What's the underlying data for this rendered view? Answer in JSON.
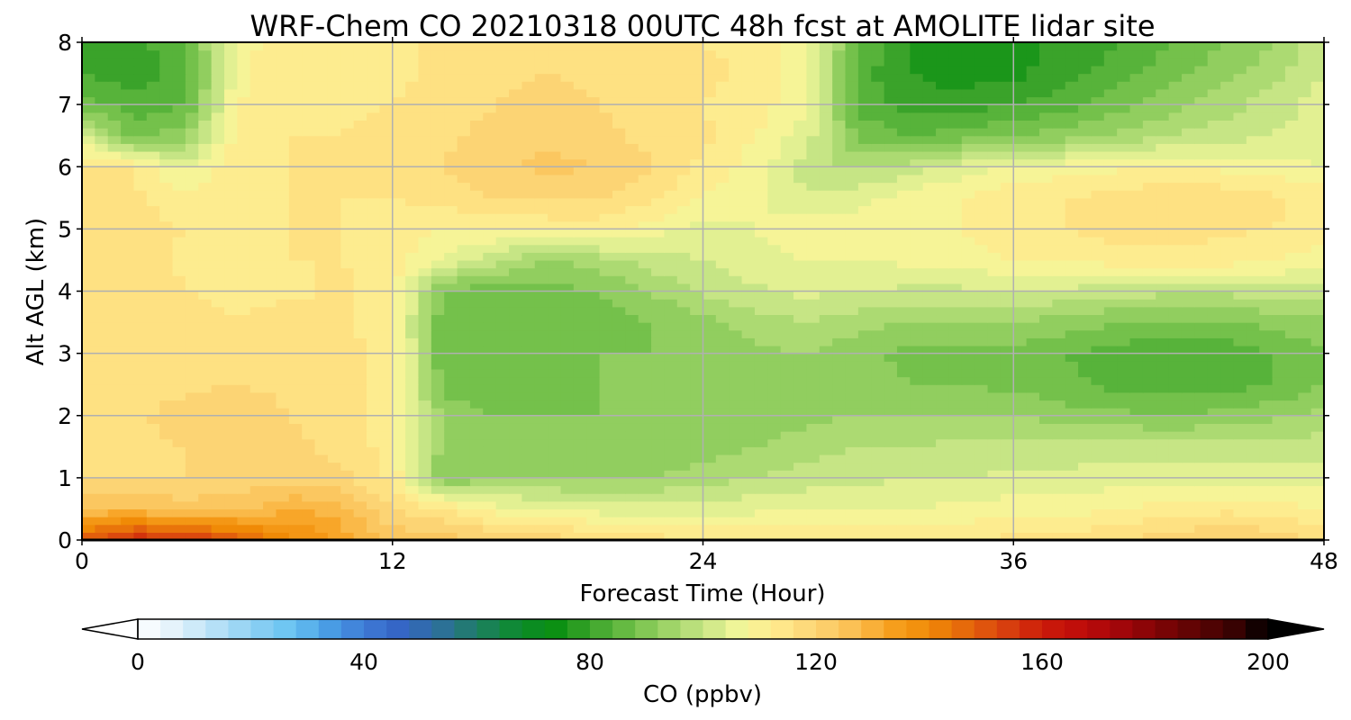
{
  "chart_data": {
    "type": "heatmap",
    "title": "WRF-Chem CO  20210318 00UTC 48h fcst at AMOLITE lidar site",
    "xlabel": "Forecast Time (Hour)",
    "ylabel": "Alt AGL (km)",
    "xlim": [
      0,
      48
    ],
    "ylim": [
      0,
      8
    ],
    "x_ticks": [
      "0",
      "12",
      "24",
      "36",
      "48"
    ],
    "y_ticks": [
      "0",
      "1",
      "2",
      "3",
      "4",
      "5",
      "6",
      "7",
      "8"
    ],
    "grid": true,
    "x": [
      0,
      2,
      4,
      6,
      8,
      10,
      12,
      14,
      16,
      18,
      20,
      22,
      24,
      26,
      28,
      30,
      32,
      34,
      36,
      38,
      40,
      42,
      44,
      46,
      48
    ],
    "y": [
      0,
      0.5,
      1,
      1.5,
      2,
      2.5,
      3,
      3.5,
      4,
      4.5,
      5,
      5.5,
      6,
      6.5,
      7,
      7.5,
      8
    ],
    "z_units": "ppbv",
    "z": [
      [
        150,
        158,
        158,
        148,
        140,
        132,
        125,
        124,
        122,
        120,
        118,
        116,
        114,
        113,
        113,
        113,
        113,
        114,
        115,
        116,
        118,
        120,
        122,
        121,
        116
      ],
      [
        126,
        127,
        124,
        125,
        130,
        128,
        118,
        114,
        108,
        106,
        104,
        104,
        104,
        105,
        105,
        106,
        106,
        107,
        108,
        108,
        110,
        112,
        113,
        112,
        110
      ],
      [
        118,
        118,
        118,
        119,
        120,
        119,
        113,
        90,
        93,
        94,
        93,
        94,
        96,
        98,
        100,
        101,
        102,
        102,
        103,
        103,
        104,
        104,
        104,
        104,
        104
      ],
      [
        117,
        117,
        118,
        120,
        119,
        117,
        112,
        92,
        90,
        90,
        90,
        91,
        92,
        94,
        96,
        98,
        98,
        99,
        99,
        100,
        100,
        100,
        100,
        100,
        100
      ],
      [
        117,
        117,
        120,
        122,
        118,
        116,
        112,
        92,
        90,
        90,
        90,
        90,
        90,
        91,
        93,
        94,
        94,
        94,
        94,
        92,
        91,
        90,
        91,
        93,
        95
      ],
      [
        117,
        117,
        117,
        118,
        117,
        116,
        112,
        88,
        88,
        89,
        90,
        91,
        91,
        93,
        94,
        92,
        90,
        90,
        89,
        87,
        85,
        84,
        84,
        86,
        90
      ],
      [
        117,
        118,
        116,
        115,
        116,
        116,
        112,
        86,
        88,
        89,
        90,
        90,
        91,
        93,
        94,
        91,
        89,
        89,
        88,
        86,
        84,
        83,
        83,
        86,
        90
      ],
      [
        118,
        117,
        115,
        114,
        116,
        115,
        111,
        86,
        87,
        86,
        88,
        90,
        92,
        96,
        98,
        96,
        93,
        93,
        94,
        92,
        90,
        89,
        89,
        91,
        93
      ],
      [
        118,
        117,
        114,
        113,
        113,
        115,
        111,
        89,
        88,
        89,
        90,
        94,
        99,
        101,
        103,
        102,
        101,
        101,
        102,
        101,
        100,
        99,
        99,
        100,
        101
      ],
      [
        116,
        116,
        113,
        113,
        114,
        114,
        112,
        105,
        99,
        93,
        96,
        100,
        102,
        105,
        106,
        106,
        107,
        108,
        110,
        110,
        112,
        112,
        112,
        110,
        108
      ],
      [
        115,
        115,
        114,
        112,
        114,
        114,
        112,
        110,
        110,
        111,
        112,
        108,
        104,
        106,
        108,
        107,
        108,
        110,
        112,
        114,
        116,
        116,
        115,
        114,
        112
      ],
      [
        115,
        115,
        112,
        114,
        114,
        114,
        114,
        116,
        118,
        119,
        118,
        115,
        110,
        107,
        103,
        105,
        108,
        110,
        113,
        114,
        116,
        117,
        117,
        115,
        112
      ],
      [
        114,
        114,
        104,
        113,
        114,
        114,
        115,
        118,
        121,
        123,
        122,
        118,
        113,
        108,
        100,
        97,
        100,
        104,
        106,
        108,
        109,
        110,
        109,
        108,
        106
      ],
      [
        104,
        88,
        93,
        112,
        114,
        114,
        115,
        117,
        120,
        121,
        119,
        117,
        115,
        110,
        104,
        89,
        86,
        88,
        90,
        92,
        95,
        98,
        100,
        102,
        104
      ],
      [
        88,
        83,
        86,
        110,
        114,
        113,
        114,
        116,
        118,
        119,
        118,
        116,
        114,
        112,
        107,
        85,
        80,
        80,
        82,
        84,
        88,
        92,
        96,
        100,
        104
      ],
      [
        82,
        80,
        84,
        108,
        114,
        113,
        113,
        115,
        117,
        118,
        117,
        116,
        115,
        113,
        108,
        84,
        78,
        76,
        77,
        80,
        84,
        88,
        92,
        96,
        102
      ],
      [
        80,
        80,
        86,
        108,
        113,
        113,
        113,
        115,
        116,
        117,
        116,
        115,
        114,
        113,
        108,
        86,
        78,
        76,
        76,
        79,
        82,
        86,
        90,
        94,
        100
      ]
    ],
    "colorbar": {
      "label": "CO  (ppbv)",
      "min": 0,
      "max": 200,
      "ticks": [
        "0",
        "40",
        "80",
        "120",
        "160",
        "200"
      ],
      "extend": "both",
      "colors": [
        "#ffffff",
        "#e2f2fb",
        "#b9e2f7",
        "#8fd1f3",
        "#6cc5f2",
        "#4aa0e6",
        "#3f7bd6",
        "#3464c4",
        "#2e6f9c",
        "#1e7e64",
        "#0e8a32",
        "#078e10",
        "#3aa32a",
        "#6abd45",
        "#9bd265",
        "#c6e585",
        "#f4f79a",
        "#ffe98c",
        "#fcd474",
        "#fbbf52",
        "#f7a01f",
        "#f08a06",
        "#e5660c",
        "#d8420e",
        "#cc1c0a",
        "#bf0c0a",
        "#a5060a",
        "#820406",
        "#600404",
        "#3e0202",
        "#000000"
      ]
    }
  }
}
